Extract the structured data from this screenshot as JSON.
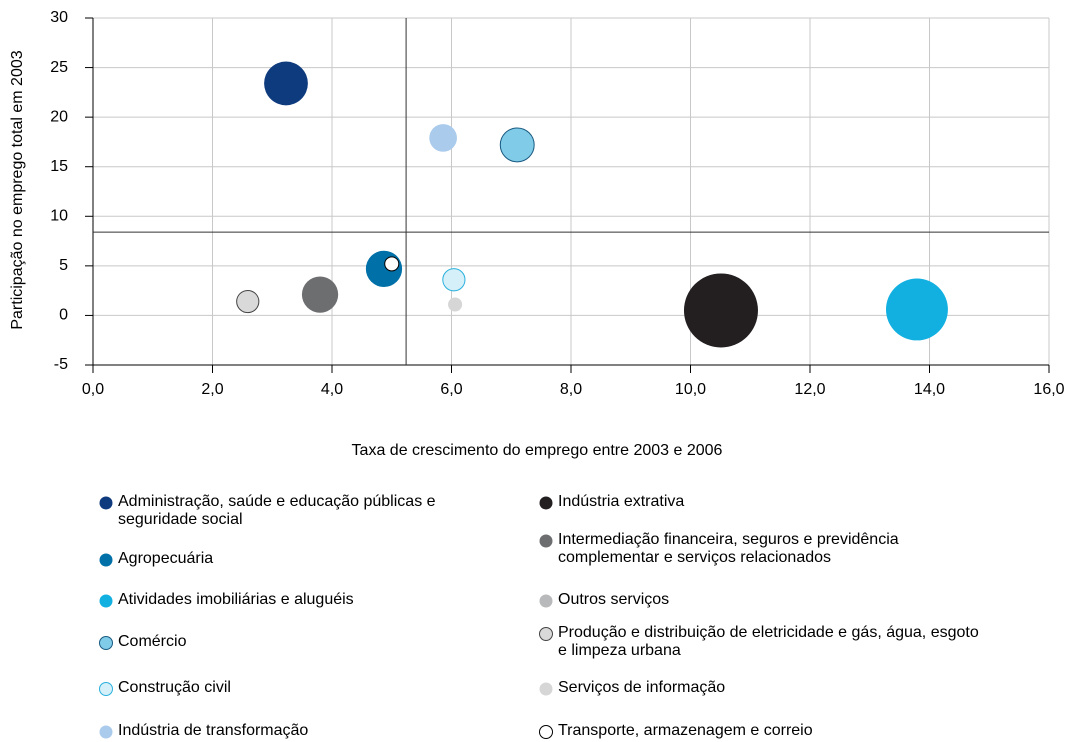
{
  "chart_data": {
    "type": "bubble",
    "x_label": "Taxa de crescimento do emprego entre 2003 e 2006",
    "y_label": "Participação no emprego total em 2003",
    "xlim": [
      0,
      16
    ],
    "ylim": [
      -5,
      30
    ],
    "xticks": [
      {
        "value": 0,
        "label": "0,0"
      },
      {
        "value": 2,
        "label": "2,0"
      },
      {
        "value": 4,
        "label": "4,0"
      },
      {
        "value": 6,
        "label": "6,0"
      },
      {
        "value": 8,
        "label": "8,0"
      },
      {
        "value": 10,
        "label": "10,0"
      },
      {
        "value": 12,
        "label": "12,0"
      },
      {
        "value": 14,
        "label": "14,0"
      },
      {
        "value": 16,
        "label": "16,0"
      }
    ],
    "yticks": [
      -5,
      0,
      5,
      10,
      15,
      20,
      25,
      30
    ],
    "grid": true,
    "reference_lines": {
      "x": 5.24,
      "y": 8.4
    },
    "series": [
      {
        "name": "Administração, saúde e educação públicas e seguridade social",
        "color": "#0e3a7e",
        "x": [
          3.23
        ],
        "y": [
          23.4
        ],
        "size": [
          35
        ]
      },
      {
        "name": "Agropecuária",
        "color": "#0070a8",
        "x": [
          4.87
        ],
        "y": [
          4.7
        ],
        "size": [
          24
        ]
      },
      {
        "name": "Atividades imobiliárias e aluguéis",
        "color": "#12b0e0",
        "x": [
          13.79
        ],
        "y": [
          0.6
        ],
        "size": [
          70
        ]
      },
      {
        "name": "Comércio",
        "color": "#7fcbe8",
        "stroke": "#1a5a80",
        "x": [
          7.1
        ],
        "y": [
          17.2
        ],
        "size": [
          21
        ]
      },
      {
        "name": "Construção civil",
        "color": "#d5f0f8",
        "stroke": "#2ab0dd",
        "x": [
          6.04
        ],
        "y": [
          3.6
        ],
        "size": [
          9
        ]
      },
      {
        "name": "Indústria de transformação",
        "color": "#aacbec",
        "x": [
          5.86
        ],
        "y": [
          17.9
        ],
        "size": [
          14
        ]
      },
      {
        "name": "Indústria extrativa",
        "color": "#231f20",
        "x": [
          10.51
        ],
        "y": [
          0.5
        ],
        "size": [
          100
        ]
      },
      {
        "name": "Intermediação financeira, seguros e previdência complementar e serviços relacionados",
        "color": "#6d6e70",
        "x": [
          3.8
        ],
        "y": [
          2.1
        ],
        "size": [
          24
        ]
      },
      {
        "name": "Outros serviços",
        "color": "#b8b9bb",
        "x": [
          null
        ],
        "y": [
          null
        ],
        "size": [
          null
        ]
      },
      {
        "name": "Produção e distribuição de eletricidade e gás, água, esgoto e limpeza urbana",
        "color": "#d9d9d9",
        "stroke": "#444444",
        "x": [
          2.59
        ],
        "y": [
          1.4
        ],
        "size": [
          9
        ]
      },
      {
        "name": "Serviços de informação",
        "color": "#d6d6d6",
        "x": [
          6.06
        ],
        "y": [
          1.1
        ],
        "size": [
          3.6
        ]
      },
      {
        "name": "Transporte, armazenagem e correio",
        "color": "#ffffff",
        "stroke": "#000000",
        "x": [
          5.0
        ],
        "y": [
          5.2
        ],
        "size": [
          3.6
        ]
      }
    ]
  }
}
